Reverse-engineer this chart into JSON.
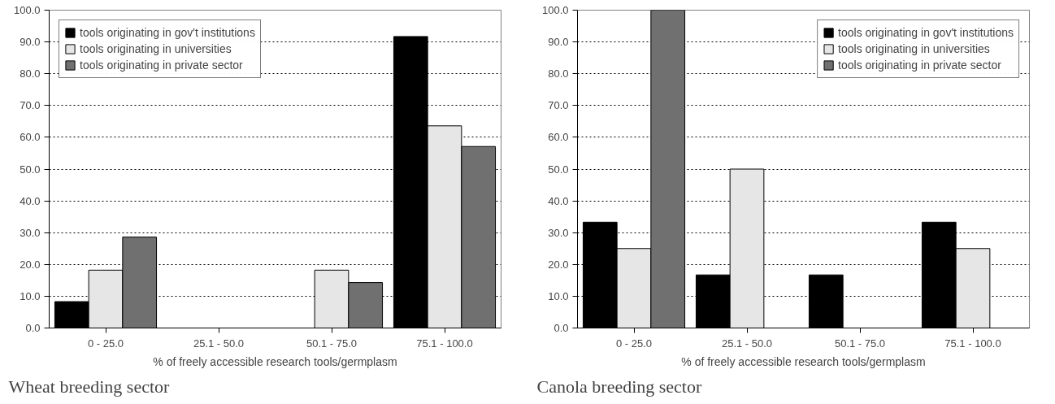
{
  "chart_data": [
    {
      "type": "bar",
      "title": "Wheat breeding sector",
      "xlabel": "% of freely accessible research tools/germplasm",
      "categories": [
        "0 - 25.0",
        "25.1 - 50.0",
        "50.1 - 75.0",
        "75.1 - 100.0"
      ],
      "series": [
        {
          "name": "tools originating in gov't institutions",
          "color": "#000000",
          "values": [
            8.3,
            0,
            0,
            91.7
          ]
        },
        {
          "name": "tools originating in universities",
          "color": "#e6e6e6",
          "values": [
            18.2,
            0,
            18.2,
            63.6
          ]
        },
        {
          "name": "tools originating in private sector",
          "color": "#707070",
          "values": [
            28.6,
            0,
            14.3,
            57.1
          ]
        }
      ],
      "ylim": [
        0,
        100
      ],
      "yticks": [
        {
          "value": 0,
          "label": "0.0"
        },
        {
          "value": 10,
          "label": "10.0"
        },
        {
          "value": 20,
          "label": "20.0"
        },
        {
          "value": 30,
          "label": "30.0"
        },
        {
          "value": 40,
          "label": "40.0"
        },
        {
          "value": 50,
          "label": "50.0"
        },
        {
          "value": 60,
          "label": "60.0"
        },
        {
          "value": 70,
          "label": "70.0"
        },
        {
          "value": 80,
          "label": "80.0"
        },
        {
          "value": 90,
          "label": "90.0"
        },
        {
          "value": 100,
          "label": "100.0"
        }
      ],
      "grid": "y",
      "legend": "top left"
    },
    {
      "type": "bar",
      "title": "Canola breeding sector",
      "xlabel": "% of freely accessible research tools/germplasm",
      "categories": [
        "0 - 25.0",
        "25.1 - 50.0",
        "50.1 - 75.0",
        "75.1 - 100.0"
      ],
      "series": [
        {
          "name": "tools originating in gov't institutions",
          "color": "#000000",
          "values": [
            33.3,
            16.7,
            16.7,
            33.3
          ]
        },
        {
          "name": "tools originating in universities",
          "color": "#e6e6e6",
          "values": [
            25,
            50,
            0,
            25
          ]
        },
        {
          "name": "tools originating in private sector",
          "color": "#707070",
          "values": [
            100,
            0,
            0,
            0
          ]
        }
      ],
      "ylim": [
        0,
        100
      ],
      "yticks": [
        {
          "value": 0,
          "label": "0.0"
        },
        {
          "value": 10,
          "label": "10.0"
        },
        {
          "value": 20,
          "label": "20.0"
        },
        {
          "value": 30,
          "label": "30.0"
        },
        {
          "value": 40,
          "label": "40.0"
        },
        {
          "value": 50,
          "label": "50.0"
        },
        {
          "value": 60,
          "label": "60.0"
        },
        {
          "value": 70,
          "label": "70.0"
        },
        {
          "value": 80,
          "label": "80.0"
        },
        {
          "value": 90,
          "label": "90.0"
        },
        {
          "value": 100,
          "label": "100.0"
        }
      ],
      "grid": "y",
      "legend": "top right"
    }
  ]
}
